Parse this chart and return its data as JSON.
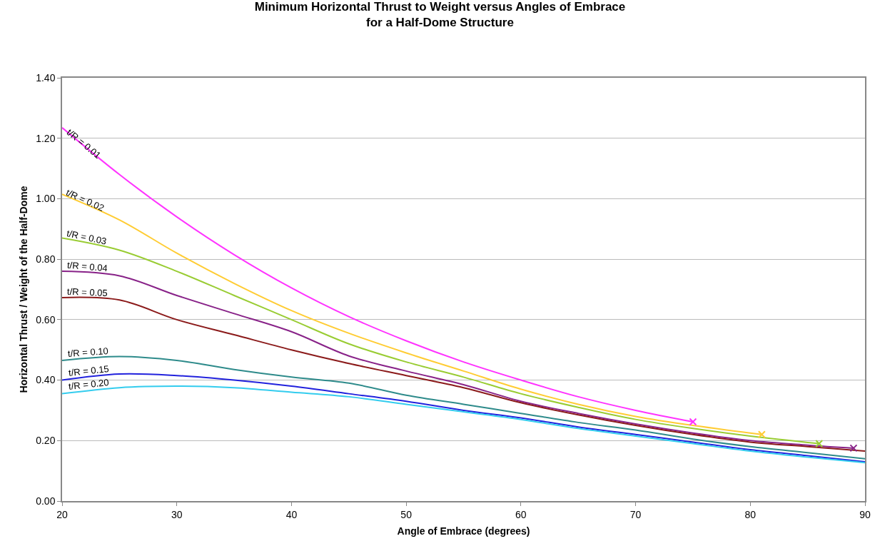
{
  "chart_data": {
    "type": "line",
    "title": "Minimum Horizontal Thrust to Weight versus Angles of Embrace\nfor a Half-Dome Structure",
    "xlabel": "Angle of Embrace (degrees)",
    "ylabel": "Horizontal Thrust / Weight of the Half-Dome",
    "xlim": [
      20,
      90
    ],
    "xticks": [
      20,
      30,
      40,
      50,
      60,
      70,
      80,
      90
    ],
    "ylim": [
      0,
      1.4
    ],
    "yticks": [
      {
        "value": 0,
        "label": "0.00"
      },
      {
        "value": 0.2,
        "label": "0.20"
      },
      {
        "value": 0.4,
        "label": "0.40"
      },
      {
        "value": 0.6,
        "label": "0.60"
      },
      {
        "value": 0.8,
        "label": "0.80"
      },
      {
        "value": 1.0,
        "label": "1.00"
      },
      {
        "value": 1.2,
        "label": "1.20"
      },
      {
        "value": 1.4,
        "label": "1.40"
      }
    ],
    "grid": "y",
    "legend": false,
    "marker": "none",
    "line_style": "solid",
    "series": [
      {
        "name": "t/R = 0.01",
        "color": "#ff33ff",
        "x": [
          20,
          25,
          30,
          35,
          40,
          45,
          50,
          55,
          60,
          65,
          70,
          75
        ],
        "values": [
          1.235,
          1.08,
          0.94,
          0.815,
          0.705,
          0.61,
          0.53,
          0.46,
          0.4,
          0.345,
          0.3,
          0.262
        ]
      },
      {
        "name": "t/R = 0.02",
        "color": "#ffcc33",
        "x": [
          20,
          25,
          30,
          35,
          40,
          45,
          50,
          55,
          60,
          65,
          70,
          75,
          81
        ],
        "values": [
          1.015,
          0.93,
          0.82,
          0.72,
          0.63,
          0.555,
          0.49,
          0.43,
          0.37,
          0.32,
          0.28,
          0.25,
          0.22
        ]
      },
      {
        "name": "t/R = 0.03",
        "color": "#99cc33",
        "x": [
          20,
          25,
          30,
          35,
          40,
          45,
          50,
          55,
          60,
          65,
          70,
          75,
          80,
          86
        ],
        "values": [
          0.87,
          0.83,
          0.76,
          0.68,
          0.6,
          0.52,
          0.46,
          0.41,
          0.355,
          0.31,
          0.27,
          0.24,
          0.215,
          0.19
        ]
      },
      {
        "name": "t/R = 0.04",
        "color": "#882288",
        "x": [
          20,
          25,
          30,
          35,
          40,
          45,
          50,
          55,
          60,
          65,
          70,
          75,
          80,
          85,
          89
        ],
        "values": [
          0.76,
          0.745,
          0.68,
          0.62,
          0.56,
          0.48,
          0.43,
          0.385,
          0.33,
          0.29,
          0.255,
          0.225,
          0.2,
          0.185,
          0.175
        ]
      },
      {
        "name": "t/R = 0.05",
        "color": "#8b1a1a",
        "x": [
          20,
          25,
          30,
          35,
          40,
          45,
          50,
          55,
          60,
          65,
          70,
          75,
          80,
          85,
          90
        ],
        "values": [
          0.673,
          0.665,
          0.6,
          0.55,
          0.5,
          0.455,
          0.415,
          0.375,
          0.325,
          0.285,
          0.25,
          0.22,
          0.195,
          0.18,
          0.165
        ]
      },
      {
        "name": "t/R = 0.10",
        "color": "#2e8b8b",
        "x": [
          20,
          25,
          30,
          35,
          40,
          45,
          50,
          55,
          60,
          65,
          70,
          75,
          80,
          85,
          90
        ],
        "values": [
          0.465,
          0.478,
          0.465,
          0.435,
          0.41,
          0.39,
          0.35,
          0.32,
          0.29,
          0.26,
          0.235,
          0.205,
          0.18,
          0.16,
          0.14
        ]
      },
      {
        "name": "t/R = 0.15",
        "color": "#2222dd",
        "x": [
          20,
          25,
          30,
          35,
          40,
          45,
          50,
          55,
          60,
          65,
          70,
          75,
          80,
          85,
          90
        ],
        "values": [
          0.4,
          0.42,
          0.415,
          0.4,
          0.38,
          0.355,
          0.33,
          0.3,
          0.275,
          0.245,
          0.22,
          0.195,
          0.17,
          0.15,
          0.13
        ]
      },
      {
        "name": "t/R = 0.20",
        "color": "#33ccee",
        "x": [
          20,
          25,
          30,
          35,
          40,
          45,
          50,
          55,
          60,
          65,
          70,
          75,
          80,
          85,
          90
        ],
        "values": [
          0.355,
          0.375,
          0.38,
          0.375,
          0.36,
          0.345,
          0.32,
          0.295,
          0.27,
          0.24,
          0.215,
          0.19,
          0.165,
          0.145,
          0.127
        ]
      },
      {
        "type": "scatter",
        "marker": "cross",
        "color": "#ff33ff",
        "x": [
          75
        ],
        "values": [
          0.262
        ]
      },
      {
        "type": "scatter",
        "marker": "cross",
        "color": "#ffcc33",
        "x": [
          81
        ],
        "values": [
          0.22
        ]
      },
      {
        "type": "scatter",
        "marker": "cross",
        "color": "#99cc33",
        "x": [
          86
        ],
        "values": [
          0.19
        ]
      },
      {
        "type": "scatter",
        "marker": "cross",
        "color": "#882288",
        "x": [
          89
        ],
        "values": [
          0.175
        ]
      }
    ]
  }
}
